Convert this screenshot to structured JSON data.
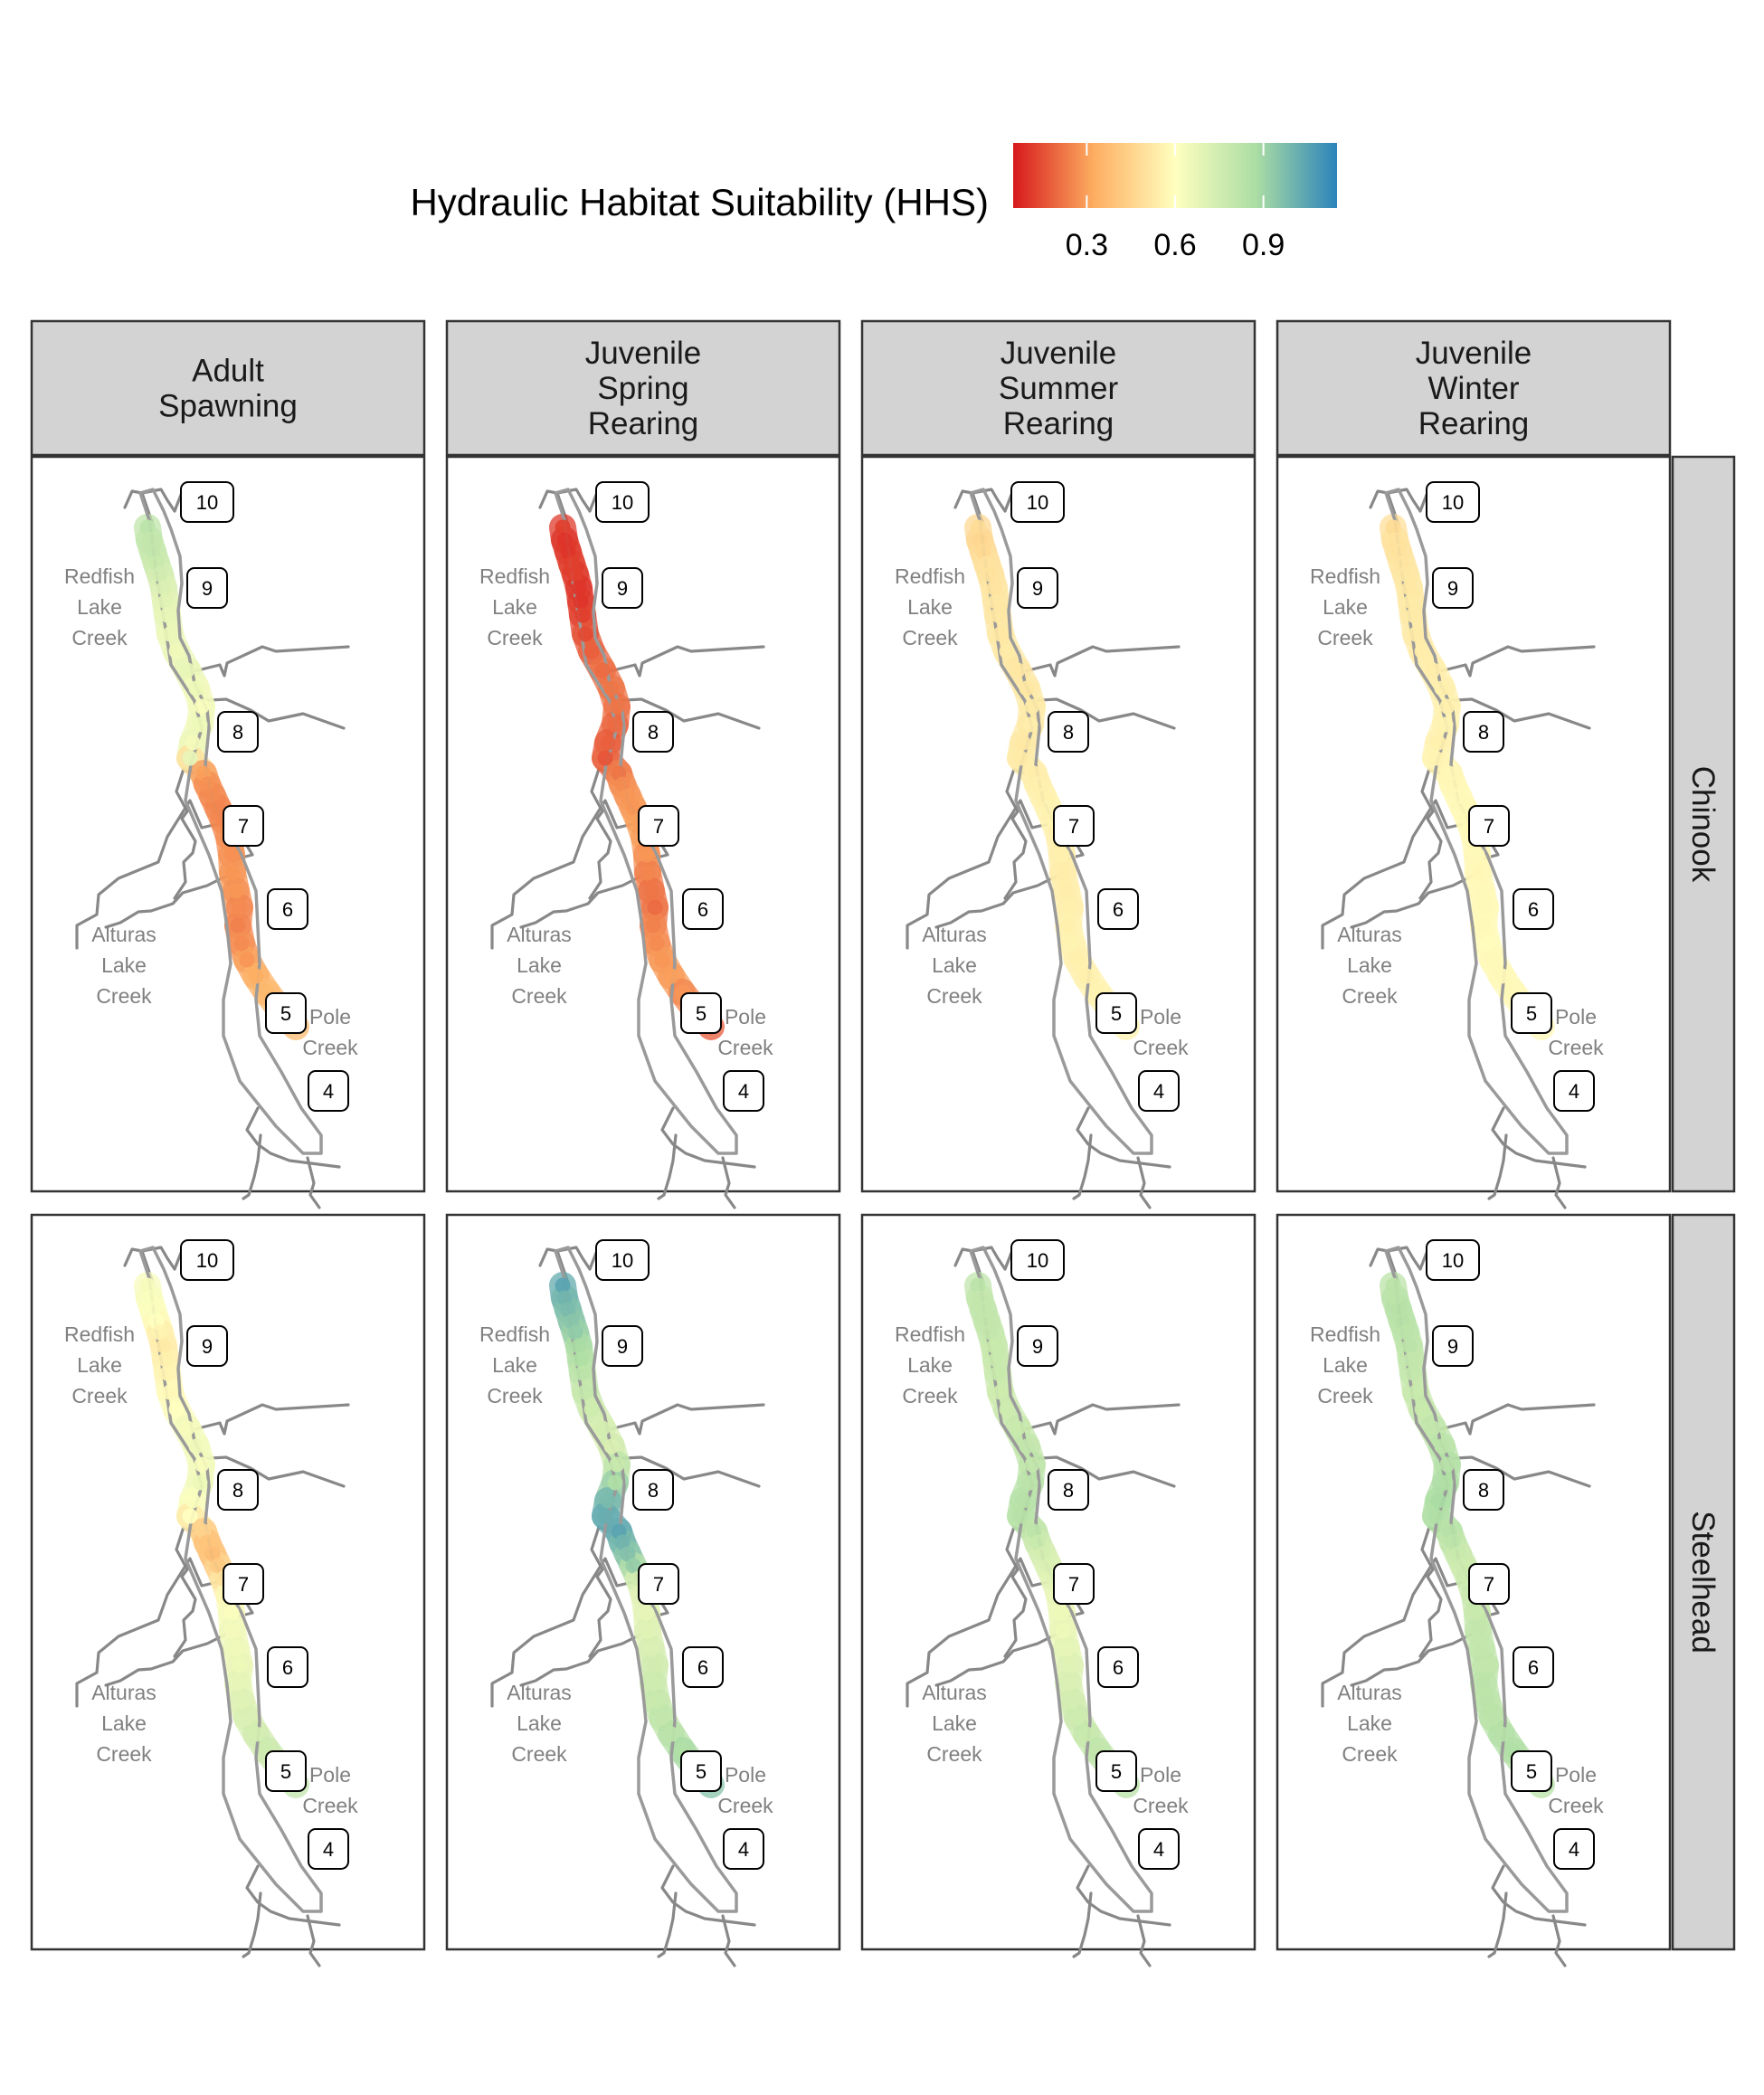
{
  "legend": {
    "title": "Hydraulic Habitat Suitability (HHS)",
    "ticks": [
      "0.3",
      "0.6",
      "0.9"
    ],
    "tick_values": [
      0.3,
      0.6,
      0.9
    ],
    "range": [
      0.05,
      1.15
    ],
    "colors": [
      "#d7191c",
      "#fdae61",
      "#ffffbf",
      "#abdda4",
      "#2b83ba"
    ]
  },
  "columns": [
    {
      "label": [
        "Adult",
        "Spawning"
      ]
    },
    {
      "label": [
        "Juvenile",
        "Spring",
        "Rearing"
      ]
    },
    {
      "label": [
        "Juvenile",
        "Summer",
        "Rearing"
      ]
    },
    {
      "label": [
        "Juvenile",
        "Winter",
        "Rearing"
      ]
    }
  ],
  "rows": [
    {
      "label": "Chinook"
    },
    {
      "label": "Steelhead"
    }
  ],
  "map_labels": {
    "reaches": [
      "10",
      "9",
      "8",
      "7",
      "6",
      "5",
      "4"
    ],
    "tributaries": [
      {
        "lines": [
          "Redfish",
          "Lake",
          "Creek"
        ]
      },
      {
        "lines": [
          "Alturas",
          "Lake",
          "Creek"
        ]
      },
      {
        "lines": [
          "Pole",
          "Creek"
        ]
      }
    ]
  },
  "panel_hhs": {
    "comment_free": true,
    "values": [
      [
        [
          0.82,
          0.8,
          0.8,
          0.78,
          0.75,
          0.72,
          0.7,
          0.68,
          0.67,
          0.65,
          0.68,
          0.66,
          0.62,
          0.66,
          0.64,
          0.68,
          0.3,
          0.27,
          0.26,
          0.25,
          0.25,
          0.26,
          0.27,
          0.28,
          0.28,
          0.26,
          0.24,
          0.26,
          0.28,
          0.33,
          0.36,
          0.38,
          0.36
        ],
        [
          0.12,
          0.1,
          0.1,
          0.12,
          0.12,
          0.1,
          0.1,
          0.12,
          0.14,
          0.18,
          0.2,
          0.22,
          0.22,
          0.2,
          0.18,
          0.16,
          0.22,
          0.26,
          0.28,
          0.28,
          0.3,
          0.3,
          0.28,
          0.25,
          0.22,
          0.2,
          0.24,
          0.26,
          0.28,
          0.3,
          0.28,
          0.22,
          0.12
        ],
        [
          0.48,
          0.46,
          0.47,
          0.5,
          0.5,
          0.51,
          0.52,
          0.52,
          0.52,
          0.53,
          0.52,
          0.52,
          0.53,
          0.54,
          0.52,
          0.53,
          0.54,
          0.55,
          0.55,
          0.56,
          0.56,
          0.55,
          0.55,
          0.54,
          0.54,
          0.55,
          0.55,
          0.56,
          0.55,
          0.55,
          0.56,
          0.56,
          0.56
        ],
        [
          0.48,
          0.5,
          0.5,
          0.51,
          0.52,
          0.52,
          0.53,
          0.53,
          0.53,
          0.54,
          0.54,
          0.55,
          0.55,
          0.56,
          0.55,
          0.56,
          0.57,
          0.57,
          0.58,
          0.58,
          0.58,
          0.58,
          0.58,
          0.57,
          0.58,
          0.58,
          0.58,
          0.59,
          0.58,
          0.58,
          0.58,
          0.58,
          0.58
        ]
      ],
      [
        [
          0.63,
          0.62,
          0.62,
          0.6,
          0.56,
          0.53,
          0.55,
          0.56,
          0.58,
          0.6,
          0.63,
          0.65,
          0.62,
          0.66,
          0.62,
          0.6,
          0.45,
          0.4,
          0.38,
          0.42,
          0.5,
          0.55,
          0.62,
          0.64,
          0.65,
          0.66,
          0.68,
          0.7,
          0.72,
          0.74,
          0.76,
          0.78,
          0.82
        ],
        [
          1.05,
          1.0,
          0.98,
          0.95,
          0.93,
          0.88,
          0.86,
          0.82,
          0.8,
          0.76,
          0.74,
          0.72,
          0.78,
          0.86,
          0.98,
          1.02,
          1.05,
          1.0,
          0.96,
          0.92,
          0.75,
          0.7,
          0.68,
          0.7,
          0.72,
          0.75,
          0.76,
          0.78,
          0.8,
          0.82,
          0.86,
          0.9,
          1.0
        ],
        [
          0.82,
          0.8,
          0.8,
          0.8,
          0.8,
          0.78,
          0.78,
          0.78,
          0.76,
          0.76,
          0.78,
          0.8,
          0.8,
          0.82,
          0.84,
          0.84,
          0.82,
          0.78,
          0.74,
          0.72,
          0.7,
          0.68,
          0.66,
          0.66,
          0.68,
          0.7,
          0.72,
          0.74,
          0.76,
          0.78,
          0.8,
          0.82,
          0.84
        ],
        [
          0.82,
          0.82,
          0.84,
          0.84,
          0.82,
          0.82,
          0.8,
          0.8,
          0.78,
          0.78,
          0.8,
          0.82,
          0.84,
          0.86,
          0.88,
          0.86,
          0.84,
          0.82,
          0.78,
          0.76,
          0.76,
          0.78,
          0.78,
          0.8,
          0.8,
          0.8,
          0.82,
          0.82,
          0.82,
          0.84,
          0.86,
          0.84,
          0.82
        ]
      ]
    ]
  }
}
